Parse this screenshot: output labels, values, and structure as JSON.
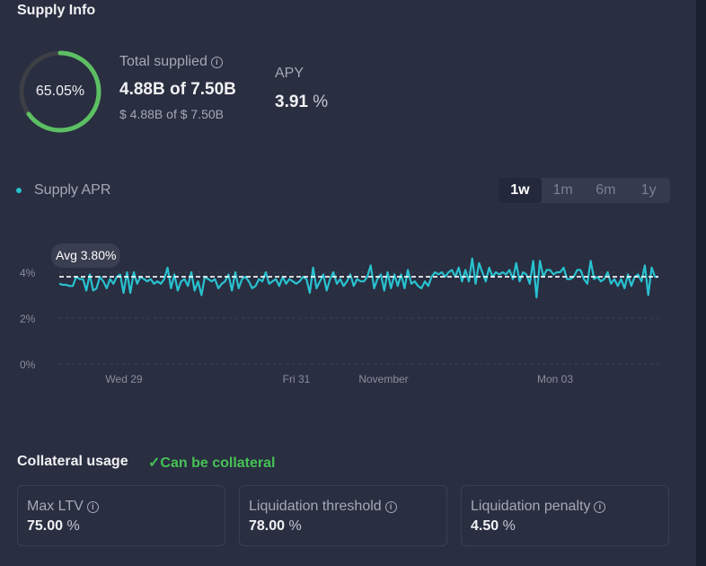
{
  "header": {
    "title": "Supply Info"
  },
  "supply": {
    "utilization_label": "65.05%",
    "utilization_fraction": 0.6505,
    "total_supplied_label": "Total supplied",
    "total_supplied_value": "4.88B of 7.50B",
    "total_supplied_usd": "$ 4.88B of $ 7.50B",
    "apy_label": "APY",
    "apy_value": "3.91",
    "apy_unit": "%"
  },
  "colors": {
    "accent": "#29c1cf",
    "ring": "#5cbf63",
    "ring_track": "#3d3f46",
    "success": "#46c255"
  },
  "chart": {
    "legend": "Supply APR",
    "ranges": [
      "1w",
      "1m",
      "6m",
      "1y"
    ],
    "selected_range": "1w",
    "avg_label": "Avg 3.80%"
  },
  "chart_data": {
    "type": "line",
    "series": [
      {
        "name": "Supply APR",
        "values": [
          3.5,
          3.45,
          3.45,
          3.4,
          3.4,
          3.8,
          3.7,
          3.7,
          3.2,
          3.9,
          3.2,
          3.3,
          3.8,
          3.6,
          3.3,
          3.7,
          3.5,
          3.8,
          3.9,
          3.1,
          4.0,
          3.1,
          4.0,
          3.5,
          3.8,
          3.7,
          3.6,
          3.7,
          3.5,
          3.6,
          3.5,
          3.7,
          4.2,
          3.3,
          3.9,
          3.2,
          3.6,
          3.7,
          3.4,
          4.0,
          3.2,
          3.6,
          3.0,
          3.8,
          3.7,
          3.6,
          3.7,
          3.3,
          3.5,
          3.6,
          3.9,
          3.2,
          4.0,
          3.3,
          3.7,
          3.8,
          3.6,
          3.3,
          3.4,
          3.7,
          3.6,
          4.0,
          3.5,
          3.6,
          3.7,
          3.4,
          3.8,
          3.5,
          3.7,
          3.6,
          3.5,
          3.6,
          3.8,
          3.7,
          3.1,
          4.2,
          3.3,
          3.6,
          3.9,
          3.2,
          3.7,
          4.0,
          3.5,
          3.7,
          3.4,
          3.6,
          3.9,
          3.4,
          3.7,
          3.6,
          3.6,
          3.8,
          4.3,
          3.3,
          3.7,
          3.9,
          3.2,
          4.0,
          3.3,
          3.9,
          3.4,
          3.9,
          3.3,
          4.1,
          3.5,
          3.6,
          3.4,
          3.3,
          3.6,
          3.4,
          3.8,
          4.0,
          3.9,
          4.0,
          3.8,
          4.0,
          4.1,
          3.8,
          4.2,
          3.6,
          4.1,
          3.6,
          4.6,
          3.5,
          4.4,
          4.0,
          3.6,
          4.2,
          3.8,
          4.0,
          3.9,
          4.0,
          3.9,
          4.1,
          3.7,
          4.4,
          3.6,
          4.0,
          3.9,
          3.5,
          4.5,
          2.9,
          4.5,
          3.8,
          4.1,
          4.1,
          3.9,
          4.0,
          4.0,
          4.2,
          3.7,
          3.7,
          3.8,
          4.1,
          4.1,
          3.7,
          3.5,
          4.5,
          3.7,
          3.8,
          3.6,
          3.7,
          4.0,
          3.5,
          3.7,
          3.4,
          3.7,
          3.3,
          3.9,
          3.4,
          3.8,
          3.9,
          3.6,
          4.3,
          3.0,
          4.2,
          3.8,
          3.8
        ]
      }
    ],
    "avg": 3.8,
    "x_ticks": [
      "Wed 29",
      "Fri 31",
      "November",
      "Mon 03"
    ],
    "y_ticks": [
      "0%",
      "2%",
      "4%"
    ],
    "ylim": [
      0,
      4.8
    ],
    "grid": true
  },
  "collateral": {
    "title": "Collateral usage",
    "status": "Can be collateral",
    "cards": [
      {
        "label": "Max LTV",
        "value": "75.00",
        "unit": "%"
      },
      {
        "label": "Liquidation threshold",
        "value": "78.00",
        "unit": "%"
      },
      {
        "label": "Liquidation penalty",
        "value": "4.50",
        "unit": "%"
      }
    ]
  }
}
